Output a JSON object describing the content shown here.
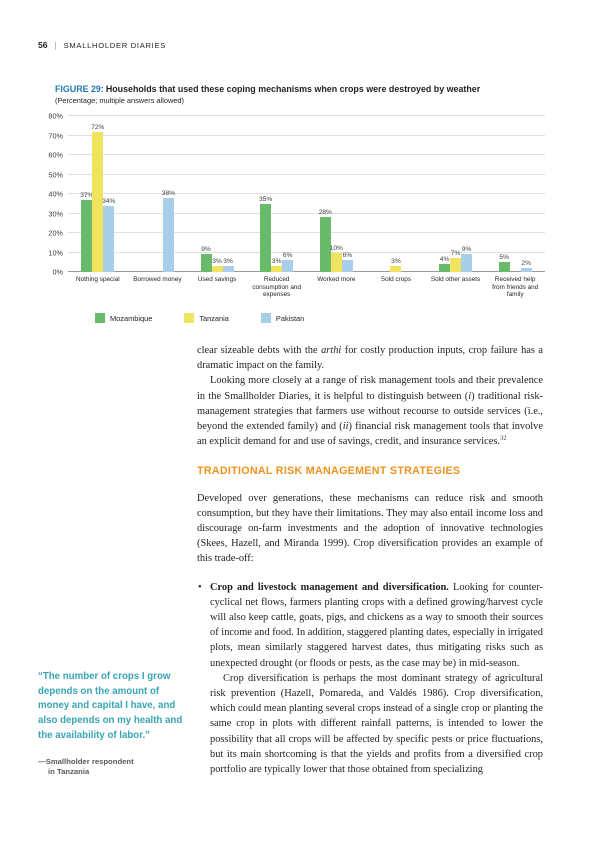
{
  "header": {
    "page_number": "56",
    "separator": "|",
    "title": "SMALLHOLDER DIARIES"
  },
  "figure": {
    "label": "FIGURE 29:",
    "title": "Households that used these coping mechanisms when crops were destroyed by weather",
    "subtitle": "(Percentage; multiple answers allowed)"
  },
  "chart_data": {
    "type": "bar",
    "title": "Households that used these coping mechanisms when crops were destroyed by weather",
    "subtitle": "(Percentage; multiple answers allowed)",
    "categories": [
      "Nothing special",
      "Borrowed money",
      "Used savings",
      "Reduced consumption and expenses",
      "Worked more",
      "Sold crops",
      "Sold other assets",
      "Received help from friends and family"
    ],
    "series": [
      {
        "name": "Mozambique",
        "color": "#6aba6b",
        "values": [
          37,
          null,
          9,
          35,
          28,
          null,
          4,
          5
        ]
      },
      {
        "name": "Tanzania",
        "color": "#efe35f",
        "values": [
          72,
          null,
          3,
          3,
          10,
          3,
          7,
          null
        ]
      },
      {
        "name": "Pakistan",
        "color": "#a9cee9",
        "values": [
          34,
          38,
          3,
          6,
          6,
          null,
          9,
          2
        ]
      }
    ],
    "xlabel": "",
    "ylabel": "",
    "ylim": [
      0,
      80
    ],
    "ytick_step": 10,
    "grid": true,
    "legend_position": "bottom",
    "value_label_suffix": "%"
  },
  "body": {
    "para1": [
      {
        "t": "clear sizeable debts with the "
      },
      {
        "t": "arthi",
        "i": true
      },
      {
        "t": " for costly production inputs, crop failure has a dramatic impact on the family."
      }
    ],
    "para2": [
      {
        "t": "Looking more closely at a range of risk management tools and their prevalence in the Smallholder Diaries, it is helpful to distinguish between ("
      },
      {
        "t": "i",
        "i": true
      },
      {
        "t": ") traditional risk-management strategies that farmers use without recourse to outside services (i.e., beyond the extended family) and ("
      },
      {
        "t": "ii",
        "i": true
      },
      {
        "t": ") financial risk management tools that involve an explicit demand for and use of savings, credit, and insurance services."
      },
      {
        "t": "32",
        "sup": true
      }
    ],
    "section_heading": "TRADITIONAL RISK MANAGEMENT STRATEGIES",
    "para3": "Developed over generations, these mechanisms can reduce risk and smooth consumption, but they have their limitations. They may also entail income loss and discourage on-farm investments and the adoption of innovative technologies (Skees, Hazell, and Miranda 1999). Crop diversification provides an example of this trade-off:",
    "bullet_marker": "•",
    "bullet_para1": [
      {
        "t": "Crop and livestock management and diversification.",
        "b": true
      },
      {
        "t": " Looking for counter-cyclical net flows, farmers planting crops with a defined growing/harvest cycle will also keep cattle, goats, pigs, and chickens as a way to smooth their sources of income and food. In addition, staggered planting dates, especially in irrigated plots, mean similarly staggered harvest dates, thus mitigating risks such as unexpected drought (or floods or pests, as the case may be) in mid-season."
      }
    ],
    "bullet_para2": "Crop diversification is perhaps the most dominant strategy of agricultural risk prevention (Hazell, Pomareda, and Valdés 1986). Crop diversification, which could mean planting several crops instead of a single crop or planting the same crop in plots with different rainfall patterns, is intended to lower the possibility that all crops will be affected by specific pests or price fluctuations, but its main shortcoming is that the yields and profits from a diversified crop portfolio are typically lower that those obtained from specializing"
  },
  "quote": {
    "text": "“The number of crops I grow depends on the amount of money and capital I have, and also depends on my health and the availability of labor.”",
    "attribution_line1": "—Smallholder respondent",
    "attribution_line2": "in Tanzania"
  }
}
